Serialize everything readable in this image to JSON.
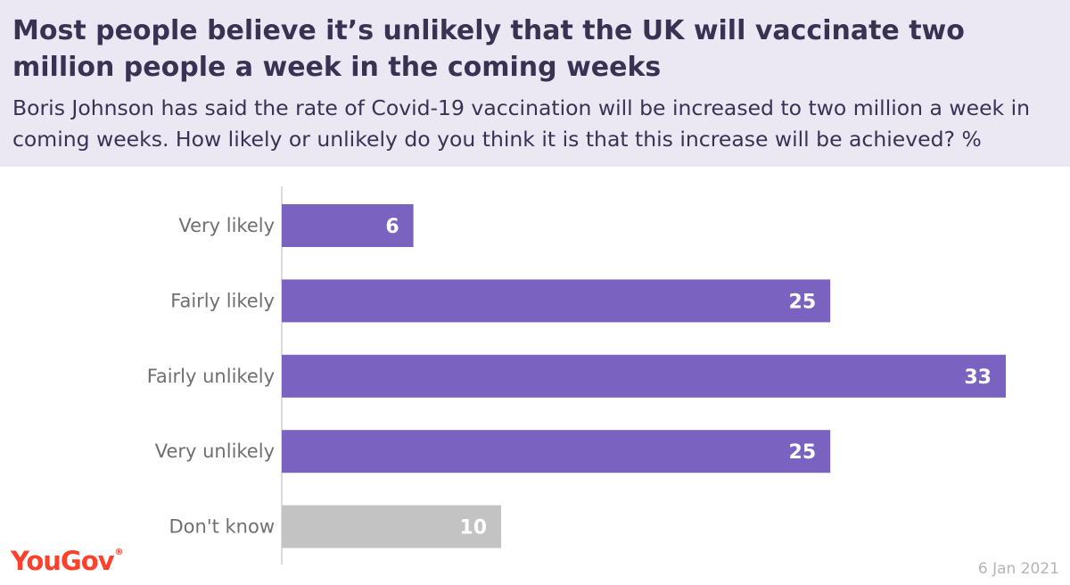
{
  "header": {
    "title": "Most people believe it’s unlikely that the UK will vaccinate two million people a week in the coming weeks",
    "subtitle": "Boris Johnson has said the rate of Covid-19 vaccination will be increased to two million a week in coming weeks. How likely or unlikely do you think it is that this increase will be achieved? %"
  },
  "footer": {
    "logo": "YouGov",
    "logo_mark": "®",
    "date": "6 Jan 2021"
  },
  "colors": {
    "header_bg": "#ebe8f4",
    "bar_primary": "#7a63c0",
    "bar_dont_know": "#c3c3c3",
    "title_text": "#3a3252",
    "logo": "#ff412c"
  },
  "chart_data": {
    "type": "bar",
    "orientation": "horizontal",
    "categories": [
      "Very likely",
      "Fairly likely",
      "Fairly unlikely",
      "Very unlikely",
      "Don't know"
    ],
    "values": [
      6,
      25,
      33,
      25,
      10
    ],
    "bar_colors": [
      "#7a63c0",
      "#7a63c0",
      "#7a63c0",
      "#7a63c0",
      "#c3c3c3"
    ],
    "unit": "%",
    "xlim": [
      0,
      33
    ],
    "grid": false,
    "legend": "none"
  }
}
